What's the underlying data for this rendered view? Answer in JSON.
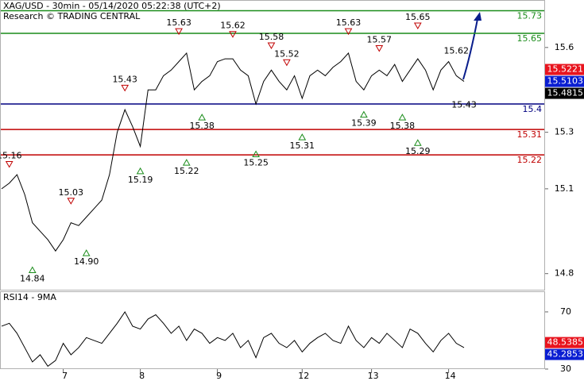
{
  "chart_data": {
    "type": "line",
    "title": "XAG/USD - 30min - 05/14/2020 05:22:38 (UTC+2)",
    "subtitle": "Research © TRADING CENTRAL",
    "categories": [
      null,
      null,
      null,
      null,
      null,
      null,
      null,
      null,
      "7",
      null,
      null,
      null,
      null,
      null,
      null,
      null,
      null,
      null,
      "8",
      null,
      null,
      null,
      null,
      null,
      null,
      null,
      null,
      null,
      "9",
      null,
      null,
      null,
      null,
      null,
      null,
      null,
      null,
      null,
      null,
      "12",
      null,
      null,
      null,
      null,
      null,
      null,
      null,
      null,
      "13",
      null,
      null,
      null,
      null,
      null,
      null,
      null,
      null,
      null,
      "14",
      null,
      null
    ],
    "series": [
      {
        "name": "XAG/USD",
        "color": "#000000",
        "values": [
          15.1,
          15.12,
          15.15,
          15.08,
          14.98,
          14.95,
          14.92,
          14.88,
          14.92,
          14.98,
          14.97,
          15.0,
          15.03,
          15.06,
          15.15,
          15.3,
          15.38,
          15.32,
          15.25,
          15.45,
          15.45,
          15.5,
          15.52,
          15.55,
          15.58,
          15.45,
          15.48,
          15.5,
          15.55,
          15.56,
          15.56,
          15.52,
          15.5,
          15.4,
          15.48,
          15.52,
          15.48,
          15.45,
          15.5,
          15.42,
          15.5,
          15.52,
          15.5,
          15.53,
          15.55,
          15.58,
          15.48,
          15.45,
          15.5,
          15.52,
          15.5,
          15.54,
          15.48,
          15.52,
          15.56,
          15.52,
          15.45,
          15.52,
          15.55,
          15.5,
          15.48
        ]
      }
    ],
    "ylim": [
      14.743,
      15.768
    ],
    "yticks": [
      14.8,
      15.1,
      15.3,
      15.6
    ],
    "levels": [
      {
        "label": "15.73",
        "value": 15.73,
        "color": "#1a8c1a"
      },
      {
        "label": "15.65",
        "value": 15.65,
        "color": "#1a8c1a"
      },
      {
        "label": "15.4",
        "value": 15.4,
        "color": "#000080"
      },
      {
        "label": "15.31",
        "value": 15.31,
        "color": "#c00000"
      },
      {
        "label": "15.22",
        "value": 15.22,
        "color": "#c00000"
      }
    ],
    "annotations": [
      {
        "label": "15.16",
        "value": 15.16,
        "x": 1,
        "dir": "down"
      },
      {
        "label": "14.84",
        "value": 14.84,
        "x": 4,
        "dir": "up"
      },
      {
        "label": "15.03",
        "value": 15.03,
        "x": 9,
        "dir": "down"
      },
      {
        "label": "14.90",
        "value": 14.9,
        "x": 11,
        "dir": "up"
      },
      {
        "label": "15.43",
        "value": 15.43,
        "x": 16,
        "dir": "down"
      },
      {
        "label": "15.19",
        "value": 15.19,
        "x": 18,
        "dir": "up"
      },
      {
        "label": "15.63",
        "value": 15.63,
        "x": 23,
        "dir": "down"
      },
      {
        "label": "15.22",
        "value": 15.22,
        "x": 24,
        "dir": "up"
      },
      {
        "label": "15.38",
        "value": 15.38,
        "x": 26,
        "dir": "up"
      },
      {
        "label": "15.62",
        "value": 15.62,
        "x": 30,
        "dir": "down"
      },
      {
        "label": "15.25",
        "value": 15.25,
        "x": 33,
        "dir": "up"
      },
      {
        "label": "15.58",
        "value": 15.58,
        "x": 35,
        "dir": "down"
      },
      {
        "label": "15.52",
        "value": 15.52,
        "x": 37,
        "dir": "down"
      },
      {
        "label": "15.31",
        "value": 15.31,
        "x": 39,
        "dir": "up"
      },
      {
        "label": "15.63",
        "value": 15.63,
        "x": 45,
        "dir": "down"
      },
      {
        "label": "15.39",
        "value": 15.39,
        "x": 47,
        "dir": "up"
      },
      {
        "label": "15.57",
        "value": 15.57,
        "x": 49,
        "dir": "down"
      },
      {
        "label": "15.38",
        "value": 15.38,
        "x": 52,
        "dir": "up"
      },
      {
        "label": "15.65",
        "value": 15.65,
        "x": 54,
        "dir": "down"
      },
      {
        "label": "15.29",
        "value": 15.29,
        "x": 54,
        "dir": "up"
      }
    ],
    "targets": [
      {
        "label": "15.62",
        "value": 15.62,
        "x": 59
      },
      {
        "label": "15.43",
        "value": 15.43,
        "x": 60
      }
    ],
    "price_markers": [
      {
        "value": 15.5221,
        "color": "#e8141e"
      },
      {
        "value": 15.5103,
        "color": "#0a1ed2"
      },
      {
        "value": 15.4815,
        "color": "#000000"
      }
    ],
    "rsi": {
      "title": "RSI14 - 9MA",
      "color": "#000000",
      "values": [
        60,
        62,
        55,
        45,
        35,
        40,
        32,
        36,
        48,
        40,
        45,
        52,
        50,
        48,
        55,
        62,
        70,
        60,
        58,
        65,
        68,
        62,
        55,
        60,
        50,
        58,
        55,
        48,
        52,
        50,
        55,
        45,
        50,
        38,
        52,
        55,
        48,
        45,
        50,
        42,
        48,
        52,
        55,
        50,
        48,
        60,
        50,
        45,
        52,
        48,
        55,
        50,
        45,
        58,
        55,
        48,
        42,
        50,
        55,
        48,
        45
      ],
      "ylim": [
        27.2,
        84.4
      ],
      "yticks": [
        30,
        70
      ],
      "markers": [
        {
          "value": 48.5385,
          "color": "#e8141e"
        },
        {
          "value": 45.2853,
          "color": "#0a1ed2"
        }
      ]
    }
  }
}
